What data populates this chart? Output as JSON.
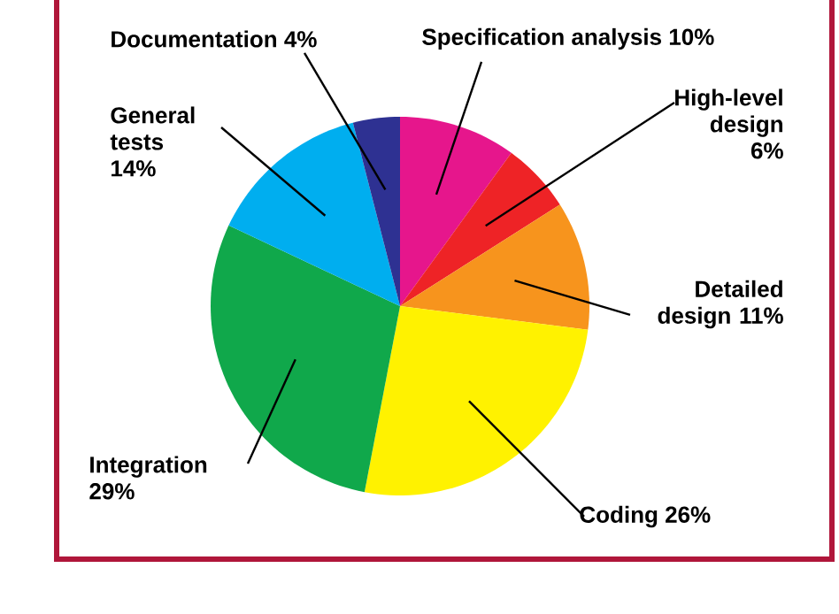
{
  "chart_data": {
    "type": "pie",
    "categories": [
      "Specification analysis",
      "High-level design",
      "Detailed design",
      "Coding",
      "Integration",
      "General tests",
      "Documentation"
    ],
    "values": [
      10,
      6,
      11,
      26,
      29,
      14,
      4
    ],
    "value_labels": [
      "10%",
      "6%",
      "11%",
      "26%",
      "29%",
      "14%",
      "4%"
    ],
    "colors": [
      "#e6168c",
      "#ee2326",
      "#f7941d",
      "#fff200",
      "#10a84b",
      "#00aeef",
      "#2e3192"
    ]
  }
}
